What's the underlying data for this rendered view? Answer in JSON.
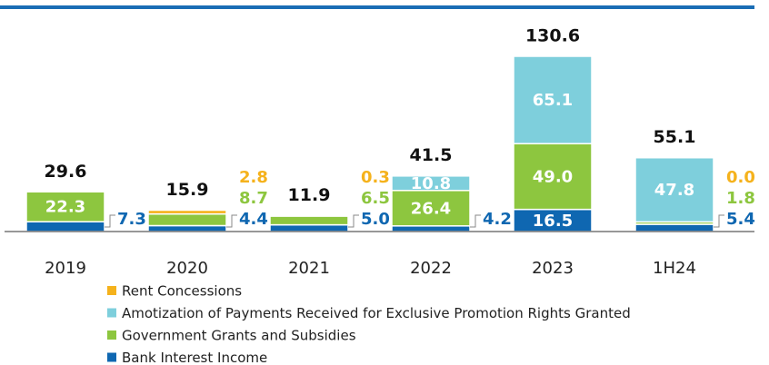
{
  "chart_data": {
    "type": "stacked_bar",
    "categories": [
      "2019",
      "2020",
      "2021",
      "2022",
      "2023",
      "1H24"
    ],
    "totals": [
      29.6,
      15.9,
      11.9,
      41.5,
      130.6,
      55.1
    ],
    "series": [
      {
        "name": "Bank Interest Income",
        "color": "#0f67b1",
        "values": [
          7.3,
          4.4,
          5.0,
          4.2,
          16.5,
          5.4
        ],
        "value_labels": [
          "7.3",
          "4.4",
          "5.0",
          "4.2",
          "16.5",
          "5.4"
        ]
      },
      {
        "name": "Government Grants and Subsidies",
        "color": "#8dc63f",
        "values": [
          22.3,
          8.7,
          6.5,
          26.4,
          49.0,
          1.8
        ],
        "value_labels": [
          "22.3",
          "8.7",
          "6.5",
          "26.4",
          "49.0",
          "1.8"
        ]
      },
      {
        "name": "Amotization of Payments Received for Exclusive Promotion Rights Granted",
        "color": "#7ecfdc",
        "values": [
          null,
          null,
          null,
          10.8,
          65.1,
          47.8
        ],
        "value_labels": [
          null,
          null,
          null,
          "10.8",
          "65.1",
          "47.8"
        ]
      },
      {
        "name": "Rent Concessions",
        "color": "#f5b21c",
        "values": [
          null,
          2.8,
          0.3,
          null,
          null,
          0.0
        ],
        "value_labels": [
          null,
          "2.8",
          "0.3",
          null,
          null,
          "0.0"
        ]
      }
    ]
  }
}
